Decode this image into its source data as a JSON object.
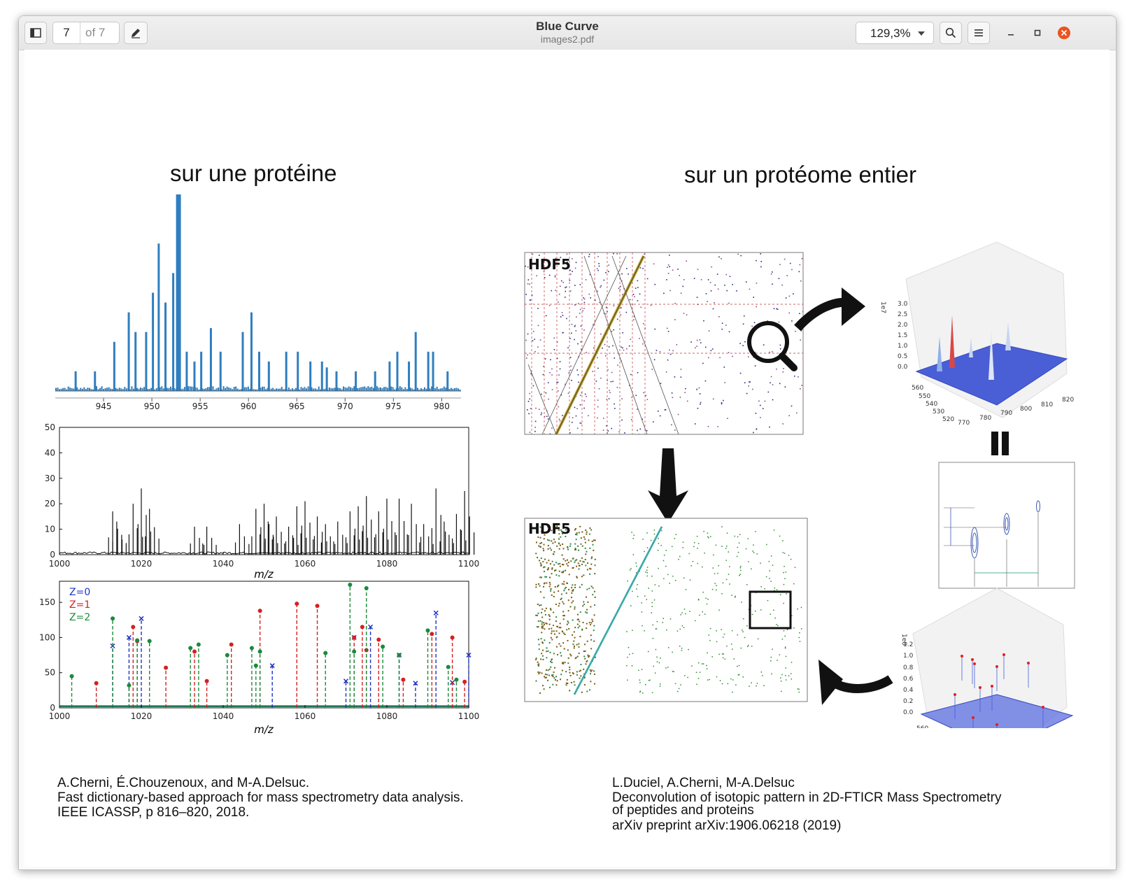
{
  "headerbar": {
    "sidebar_icon": "sidebar-toggle-icon",
    "page_current": "7",
    "page_total": "of 7",
    "annotate_icon": "pen-icon",
    "title": "Blue Curve",
    "subtitle": "images2.pdf",
    "zoom": "129,3%",
    "search_icon": "search-icon",
    "menu_icon": "hamburger-menu-icon"
  },
  "document": {
    "left_heading": "sur une protéine",
    "right_heading": "sur un protéome entier",
    "left_reference": {
      "line1": "A.Cherni, É.Chouzenoux, and M-A.Delsuc.",
      "line2": "Fast dictionary-based approach for mass spectrometry data analysis.",
      "line3": "IEEE ICASSP, p 816–820, 2018."
    },
    "right_reference": {
      "line1": "L.Duciel, A.Cherni, M-A.Delsuc",
      "line2": "Deconvolution of isotopic pattern in 2D-FTICR Mass Spectrometry",
      "line3": " of peptides and proteins",
      "line4": "arXiv preprint arXiv:1906.06218 (2019)"
    },
    "figure_labels": {
      "hdf5_top": "HDF5",
      "hdf5_bottom": "HDF5",
      "ylabel_3d_top": "1e7",
      "ylabel_3d_bottom": "1e8"
    }
  },
  "chart_data": [
    {
      "type": "bar",
      "x": [
        942,
        944,
        946,
        947.5,
        948.2,
        949.3,
        950,
        950.6,
        951.3,
        952.1,
        952.5,
        953.5,
        954.3,
        955,
        956,
        957,
        959.3,
        960.2,
        961,
        962,
        963.8,
        965,
        966.3,
        967.5,
        968,
        969,
        971,
        973,
        974.5,
        975.3,
        976.5,
        977.2,
        978.5,
        979,
        980.5
      ],
      "values": [
        0.1,
        0.1,
        0.25,
        0.4,
        0.3,
        0.3,
        0.5,
        0.75,
        0.45,
        0.6,
        1.0,
        0.2,
        0.15,
        0.2,
        0.32,
        0.2,
        0.3,
        0.4,
        0.2,
        0.15,
        0.2,
        0.2,
        0.15,
        0.15,
        0.12,
        0.1,
        0.1,
        0.1,
        0.15,
        0.2,
        0.15,
        0.3,
        0.2,
        0.2,
        0.1
      ],
      "xticks": [
        "945",
        "950",
        "955",
        "960",
        "965",
        "970",
        "975",
        "980"
      ],
      "title": "",
      "xlabel": "",
      "ylabel": ""
    },
    {
      "type": "line",
      "x": [
        1013,
        1014,
        1018,
        1020,
        1022,
        1033,
        1036,
        1044,
        1048,
        1050,
        1051,
        1053,
        1056,
        1058,
        1060,
        1063,
        1065,
        1068,
        1071,
        1073,
        1075,
        1078,
        1080,
        1083,
        1086,
        1089,
        1092,
        1094,
        1097,
        1099
      ],
      "values": [
        17,
        13,
        20,
        26,
        18,
        11,
        11,
        12,
        18,
        20,
        13,
        15,
        11,
        19,
        21,
        15,
        12,
        13,
        17,
        19,
        23,
        17,
        22,
        22,
        20,
        12,
        26,
        13,
        16,
        25
      ],
      "xticks": [
        "1000",
        "1020",
        "1040",
        "1060",
        "1080",
        "1100"
      ],
      "yticks": [
        "0",
        "10",
        "20",
        "30",
        "40",
        "50"
      ],
      "xlim": [
        1000,
        1100
      ],
      "ylim": [
        0,
        50
      ],
      "xlabel": "m/z",
      "ylabel": ""
    },
    {
      "type": "scatter",
      "xlim": [
        1000,
        1100
      ],
      "ylim": [
        0,
        180
      ],
      "xticks": [
        "1000",
        "1020",
        "1040",
        "1060",
        "1080",
        "1100"
      ],
      "yticks": [
        "0",
        "50",
        "100",
        "150"
      ],
      "xlabel": "m/z",
      "legend": [
        "Z=0",
        "Z=1",
        "Z=2"
      ],
      "series": [
        {
          "name": "Z=0",
          "color": "#1f33c4",
          "x": [
            1013,
            1017,
            1020,
            1052,
            1070,
            1072,
            1076,
            1083,
            1087,
            1092,
            1096,
            1100
          ],
          "values": [
            88,
            100,
            127,
            60,
            38,
            100,
            115,
            75,
            35,
            135,
            36,
            75
          ]
        },
        {
          "name": "Z=1",
          "color": "#d62020",
          "x": [
            1009,
            1018,
            1019,
            1026,
            1033,
            1036,
            1042,
            1049,
            1058,
            1063,
            1072,
            1074,
            1075,
            1078,
            1084,
            1091,
            1096,
            1099
          ],
          "values": [
            35,
            115,
            95,
            57,
            80,
            38,
            90,
            138,
            148,
            145,
            100,
            115,
            82,
            97,
            40,
            105,
            100,
            37
          ]
        },
        {
          "name": "Z=2",
          "color": "#1a8a3a",
          "x": [
            1003,
            1013,
            1017,
            1019,
            1022,
            1032,
            1034,
            1041,
            1047,
            1048,
            1049,
            1065,
            1071,
            1072,
            1075,
            1079,
            1083,
            1090,
            1095,
            1097
          ],
          "values": [
            45,
            127,
            32,
            96,
            95,
            85,
            90,
            75,
            85,
            60,
            80,
            78,
            175,
            80,
            170,
            87,
            75,
            110,
            58,
            40
          ]
        }
      ]
    }
  ]
}
